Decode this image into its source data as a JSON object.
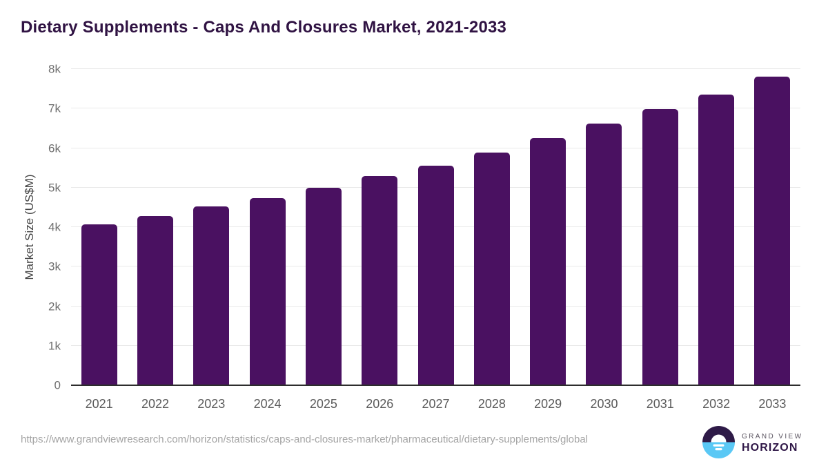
{
  "page": {
    "footer": {
      "source_url": "https://www.grandviewresearch.com/horizon/statistics/caps-and-closures-market/pharmaceutical/dietary-supplements/global",
      "logo": {
        "brand_top": "GRAND VIEW",
        "brand_bottom": "HORIZON"
      }
    }
  },
  "chart_data": {
    "type": "bar",
    "title": "Dietary Supplements - Caps And Closures Market, 2021-2033",
    "categories": [
      "2021",
      "2022",
      "2023",
      "2024",
      "2025",
      "2026",
      "2027",
      "2028",
      "2029",
      "2030",
      "2031",
      "2032",
      "2033"
    ],
    "values": [
      4070,
      4280,
      4520,
      4740,
      5000,
      5290,
      5560,
      5890,
      6250,
      6620,
      6990,
      7360,
      7810
    ],
    "xlabel": "",
    "ylabel": "Market Size (US$M)",
    "ylim": [
      0,
      8000
    ],
    "yticks": [
      {
        "value": 0,
        "label": "0"
      },
      {
        "value": 1000,
        "label": "1k"
      },
      {
        "value": 2000,
        "label": "2k"
      },
      {
        "value": 3000,
        "label": "3k"
      },
      {
        "value": 4000,
        "label": "4k"
      },
      {
        "value": 5000,
        "label": "5k"
      },
      {
        "value": 6000,
        "label": "6k"
      },
      {
        "value": 7000,
        "label": "7k"
      },
      {
        "value": 8000,
        "label": "8k"
      }
    ],
    "grid": "horizontal",
    "legend": "none",
    "bar_color": "#4a1161"
  },
  "colors": {
    "title": "#301343",
    "bar": "#4a1161",
    "gridline": "#e9e9e9",
    "axis_line": "#2d2d2d",
    "y_tick": "#6f6f6f",
    "x_tick": "#5a5a5a",
    "url": "#a4a4a4",
    "logo_dark": "#2e1a47",
    "logo_blue": "#5ac8f5"
  }
}
